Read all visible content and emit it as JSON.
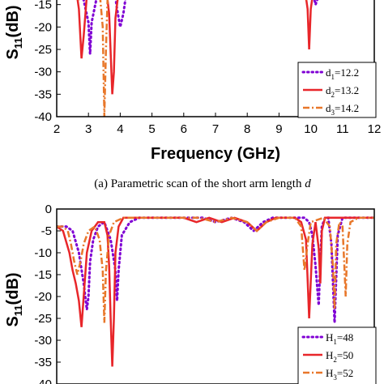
{
  "chart_data": [
    {
      "type": "line",
      "xlabel": "Frequency (GHz)",
      "ylabel": "S11(dB)",
      "ylabel_main": "S",
      "ylabel_sub": "11",
      "ylabel_unit": "(dB)",
      "xlim": [
        2,
        12
      ],
      "ylim": [
        -40,
        -10
      ],
      "xticks": [
        2,
        3,
        4,
        5,
        6,
        7,
        8,
        9,
        10,
        11,
        12
      ],
      "yticks": [
        -40,
        -35,
        -30,
        -25,
        -20,
        -15
      ],
      "caption_prefix": "(a) Parametric scan of the short arm length ",
      "caption_var": "d",
      "legend_box": true,
      "series": [
        {
          "name": "d1=12.2",
          "label_main": "d",
          "label_sub": "1",
          "label_value": "=12.2",
          "color": "#7f00d4",
          "style": "dot",
          "x": [
            2.0,
            2.5,
            2.7,
            2.85,
            3.0,
            3.05,
            3.1,
            3.3,
            3.5,
            3.7,
            3.8,
            3.9,
            4.0,
            4.1,
            4.2,
            4.5,
            5.0,
            6.0,
            7.0,
            8.0,
            9.0,
            9.6,
            9.9,
            10.05,
            10.15,
            10.25,
            10.35,
            10.5,
            11.0,
            12.0
          ],
          "y": [
            -8,
            -8,
            -10,
            -14,
            -19,
            -26,
            -19,
            -12,
            -9,
            -9,
            -11,
            -16,
            -20,
            -17,
            -12,
            -9,
            -8,
            -8,
            -8,
            -8,
            -8,
            -9,
            -10,
            -12,
            -15,
            -13,
            -10,
            -9,
            -8,
            -8
          ]
        },
        {
          "name": "d2=13.2",
          "label_main": "d",
          "label_sub": "2",
          "label_value": "=13.2",
          "color": "#e8262a",
          "style": "solid",
          "x": [
            2.0,
            2.4,
            2.6,
            2.7,
            2.78,
            2.85,
            2.95,
            3.2,
            3.4,
            3.55,
            3.65,
            3.75,
            3.8,
            3.85,
            3.95,
            4.2,
            4.5,
            5.0,
            6.0,
            7.0,
            8.0,
            9.0,
            9.5,
            9.8,
            9.9,
            9.95,
            10.0,
            10.1,
            10.3,
            11.0,
            12.0
          ],
          "y": [
            -8,
            -8,
            -11,
            -16,
            -27,
            -22,
            -13,
            -9,
            -9,
            -11,
            -17,
            -35,
            -30,
            -18,
            -12,
            -9,
            -8,
            -8,
            -8,
            -8,
            -8,
            -8,
            -9,
            -11,
            -16,
            -25,
            -16,
            -11,
            -9,
            -8,
            -8
          ]
        },
        {
          "name": "d3=14.2",
          "label_main": "d",
          "label_sub": "3",
          "label_value": "=14.2",
          "color": "#e8772a",
          "style": "dashdot",
          "x": [
            2.0,
            2.3,
            2.5,
            2.6,
            2.7,
            2.8,
            3.0,
            3.2,
            3.35,
            3.45,
            3.5,
            3.55,
            3.6,
            3.7,
            3.9,
            4.2,
            5.0,
            6.0,
            7.0,
            8.0,
            9.0,
            9.5,
            9.7,
            9.8,
            9.85,
            9.9,
            10.0,
            10.5,
            12.0
          ],
          "y": [
            -8,
            -8,
            -9,
            -11,
            -14,
            -11,
            -9,
            -9,
            -12,
            -20,
            -40,
            -25,
            -14,
            -10,
            -9,
            -8,
            -8,
            -8,
            -8,
            -8,
            -8,
            -9,
            -10,
            -12,
            -14,
            -12,
            -10,
            -8,
            -8
          ]
        }
      ]
    },
    {
      "type": "line",
      "xlabel": "",
      "ylabel": "S11(dB)",
      "ylabel_main": "S",
      "ylabel_sub": "11",
      "ylabel_unit": "(dB)",
      "xlim": [
        2,
        12
      ],
      "ylim": [
        -40,
        0
      ],
      "yticks": [
        -40,
        -35,
        -30,
        -25,
        -20,
        -15,
        -10,
        -5,
        0
      ],
      "legend_box": true,
      "series": [
        {
          "name": "H1=48",
          "label_main": "H",
          "label_sub": "1",
          "label_value": "=48",
          "color": "#7f00d4",
          "style": "dot",
          "x": [
            2.0,
            2.3,
            2.5,
            2.7,
            2.85,
            2.95,
            3.0,
            3.05,
            3.15,
            3.3,
            3.5,
            3.7,
            3.85,
            3.9,
            3.95,
            4.05,
            4.3,
            4.6,
            4.9,
            5.3,
            5.7,
            6.0,
            6.3,
            6.6,
            7.0,
            7.5,
            7.9,
            8.2,
            8.5,
            8.8,
            9.2,
            9.5,
            9.8,
            9.95,
            10.05,
            10.15,
            10.25,
            10.3,
            10.35,
            10.45,
            10.55,
            10.65,
            10.75,
            10.85,
            11.0,
            11.4,
            11.8,
            12.0
          ],
          "y": [
            -4,
            -4,
            -5,
            -10,
            -17,
            -23,
            -20,
            -12,
            -7,
            -4,
            -3,
            -7,
            -14,
            -21,
            -14,
            -6,
            -3,
            -2,
            -2,
            -2,
            -2,
            -2,
            -2,
            -2,
            -3,
            -2,
            -3,
            -5,
            -3,
            -2,
            -2,
            -2,
            -2,
            -3,
            -6,
            -13,
            -22,
            -12,
            -4,
            -2,
            -2,
            -8,
            -26,
            -6,
            -2,
            -2,
            -2,
            -2
          ]
        },
        {
          "name": "H2=50",
          "label_main": "H",
          "label_sub": "2",
          "label_value": "=50",
          "color": "#e8262a",
          "style": "solid",
          "x": [
            2.0,
            2.2,
            2.4,
            2.5,
            2.6,
            2.7,
            2.78,
            2.85,
            2.95,
            3.1,
            3.3,
            3.5,
            3.6,
            3.65,
            3.7,
            3.75,
            3.8,
            3.85,
            3.95,
            4.1,
            4.4,
            4.7,
            5.0,
            5.3,
            5.6,
            6.0,
            6.4,
            6.8,
            7.2,
            7.6,
            8.0,
            8.3,
            8.6,
            8.9,
            9.2,
            9.5,
            9.7,
            9.85,
            9.9,
            9.95,
            10.05,
            10.15,
            10.25,
            10.3,
            10.35,
            10.45,
            10.6,
            11.0,
            11.5,
            12.0
          ],
          "y": [
            -4,
            -5,
            -10,
            -14,
            -17,
            -21,
            -27,
            -20,
            -10,
            -5,
            -3,
            -3,
            -6,
            -13,
            -25,
            -36,
            -25,
            -10,
            -4,
            -2,
            -2,
            -2,
            -2,
            -2,
            -2,
            -2,
            -3,
            -2,
            -3,
            -2,
            -3,
            -5,
            -3,
            -2,
            -2,
            -2,
            -3,
            -7,
            -16,
            -25,
            -8,
            -3,
            -9,
            -17,
            -5,
            -2,
            -2,
            -2,
            -2,
            -2
          ]
        },
        {
          "name": "H3=52",
          "label_main": "H",
          "label_sub": "3",
          "label_value": "=52",
          "color": "#e8772a",
          "style": "dashdot",
          "x": [
            2.0,
            2.2,
            2.35,
            2.45,
            2.55,
            2.65,
            2.75,
            2.85,
            3.0,
            3.2,
            3.35,
            3.45,
            3.5,
            3.55,
            3.65,
            3.8,
            4.1,
            4.5,
            5.0,
            5.5,
            6.0,
            6.5,
            7.0,
            7.5,
            8.0,
            8.3,
            8.6,
            9.0,
            9.5,
            9.7,
            9.75,
            9.8,
            9.9,
            10.0,
            10.4,
            10.6,
            10.7,
            10.75,
            10.8,
            10.9,
            11.0,
            11.05,
            11.1,
            11.15,
            11.25,
            11.5,
            12.0
          ],
          "y": [
            -4,
            -4,
            -5,
            -8,
            -12,
            -15,
            -12,
            -8,
            -5,
            -4,
            -7,
            -14,
            -26,
            -14,
            -6,
            -3,
            -2,
            -2,
            -2,
            -2,
            -2,
            -2,
            -3,
            -2,
            -3,
            -5,
            -3,
            -2,
            -2,
            -4,
            -9,
            -14,
            -8,
            -3,
            -2,
            -4,
            -13,
            -23,
            -8,
            -3,
            -4,
            -12,
            -20,
            -8,
            -3,
            -2,
            -2
          ]
        }
      ]
    }
  ]
}
